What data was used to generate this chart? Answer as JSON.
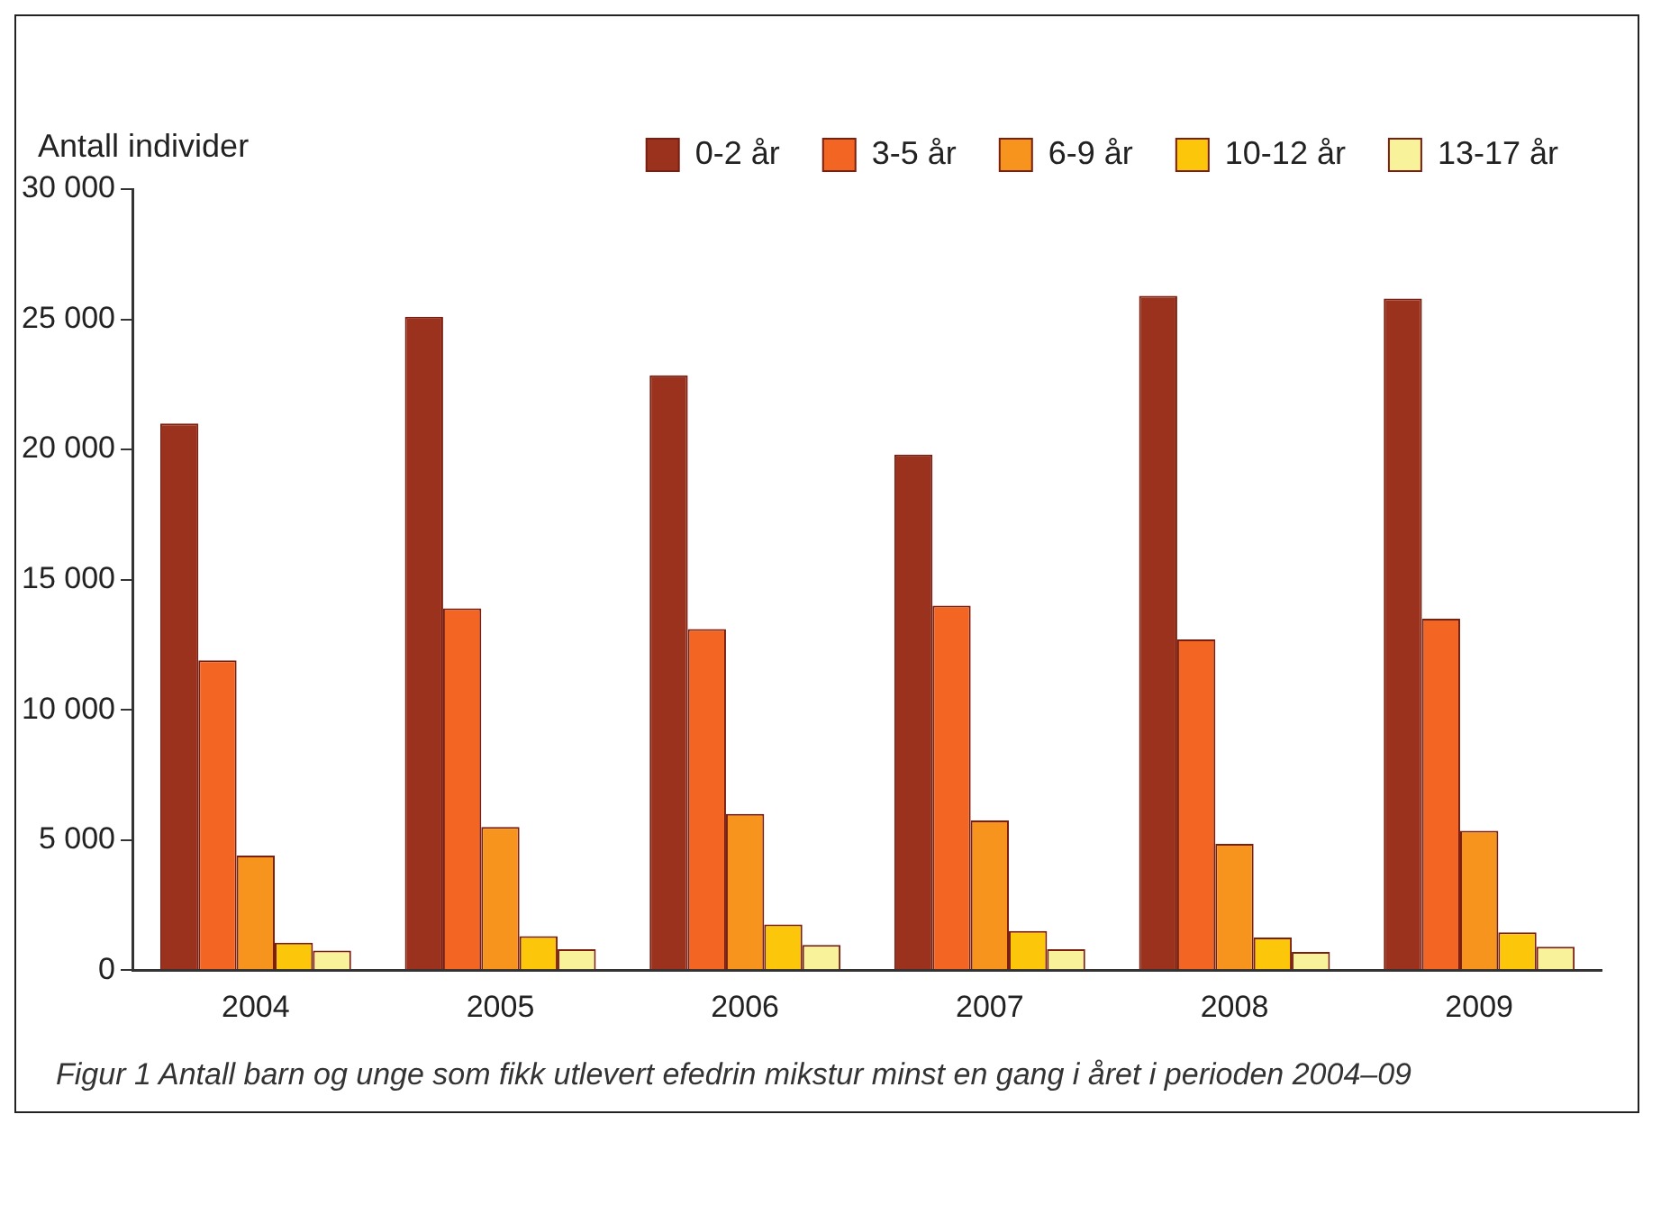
{
  "chart_data": {
    "type": "bar",
    "ylabel": "Antall individer",
    "categories": [
      "2004",
      "2005",
      "2006",
      "2007",
      "2008",
      "2009"
    ],
    "series": [
      {
        "name": "0-2 år",
        "color": "#9a321e",
        "values": [
          21000,
          25100,
          22850,
          19800,
          25900,
          25800
        ]
      },
      {
        "name": "3-5 år",
        "color": "#f26522",
        "values": [
          11900,
          13900,
          13100,
          14000,
          12700,
          13500
        ]
      },
      {
        "name": "6-9 år",
        "color": "#f7941d",
        "values": [
          4400,
          5500,
          6000,
          5750,
          4850,
          5350
        ]
      },
      {
        "name": "10-12 år",
        "color": "#fcc70a",
        "values": [
          1050,
          1300,
          1750,
          1500,
          1250,
          1450
        ]
      },
      {
        "name": "13-17 år",
        "color": "#f8f29a",
        "values": [
          750,
          800,
          970,
          800,
          700,
          900
        ]
      }
    ],
    "ylim": [
      0,
      30000
    ],
    "yticks": [
      {
        "value": 0,
        "label": "0"
      },
      {
        "value": 5000,
        "label": "5 000"
      },
      {
        "value": 10000,
        "label": "10 000"
      },
      {
        "value": 15000,
        "label": "15 000"
      },
      {
        "value": 20000,
        "label": "20 000"
      },
      {
        "value": 25000,
        "label": "25 000"
      },
      {
        "value": 30000,
        "label": "30 000"
      }
    ],
    "grid": false,
    "legend": "top right",
    "annotations": [
      "Figur 1  Antall barn og unge som fikk utlevert efedrin mikstur minst en gang i året i perioden 2004–09"
    ]
  }
}
